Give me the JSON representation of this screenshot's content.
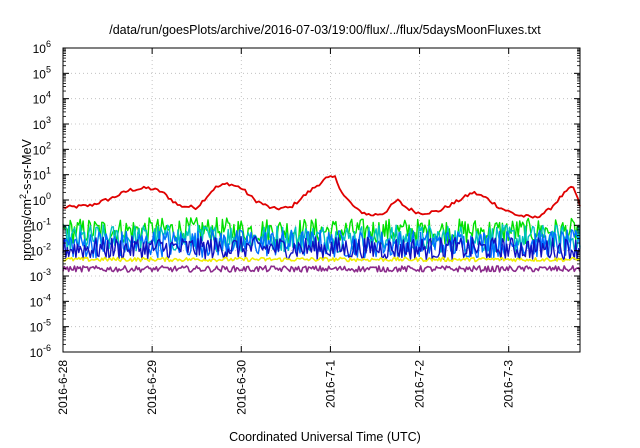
{
  "chart_data": {
    "type": "line",
    "title": "/data/run/goesPlots/archive/2016-07-03/19:00/flux/../flux/5daysMoonFluxes.txt",
    "xlabel": "Coordinated Universal Time (UTC)",
    "ylabel": "protons/cm²-s-sr-MeV",
    "ylabel_parts": {
      "prefix": "protons/cm",
      "superscript": "2",
      "suffix": "-s-sr-MeV"
    },
    "y_scale": "log",
    "ylim": [
      1e-06,
      1000000
    ],
    "y_ticks": [
      {
        "value": 1e-06,
        "base": "10",
        "exp": "-6"
      },
      {
        "value": 1e-05,
        "base": "10",
        "exp": "-5"
      },
      {
        "value": 0.0001,
        "base": "10",
        "exp": "-4"
      },
      {
        "value": 0.001,
        "base": "10",
        "exp": "-3"
      },
      {
        "value": 0.01,
        "base": "10",
        "exp": "-2"
      },
      {
        "value": 0.1,
        "base": "10",
        "exp": "-1"
      },
      {
        "value": 1,
        "base": "10",
        "exp": "0"
      },
      {
        "value": 10,
        "base": "10",
        "exp": "1"
      },
      {
        "value": 100,
        "base": "10",
        "exp": "2"
      },
      {
        "value": 1000,
        "base": "10",
        "exp": "3"
      },
      {
        "value": 10000,
        "base": "10",
        "exp": "4"
      },
      {
        "value": 100000,
        "base": "10",
        "exp": "5"
      },
      {
        "value": 1000000,
        "base": "10",
        "exp": "6"
      }
    ],
    "x_unit": "days",
    "xlim": [
      0,
      5.8
    ],
    "x_ticks": [
      {
        "value": 0,
        "label": "2016-6-28"
      },
      {
        "value": 1,
        "label": "2016-6-29"
      },
      {
        "value": 2,
        "label": "2016-6-30"
      },
      {
        "value": 3,
        "label": "2016-7-1"
      },
      {
        "value": 4,
        "label": "2016-7-2"
      },
      {
        "value": 5,
        "label": "2016-7-3"
      }
    ],
    "grid": true,
    "series": [
      {
        "color": "#e00000",
        "width": 1.8,
        "baseline": [
          [
            0.0,
            0.5
          ],
          [
            0.3,
            0.6
          ],
          [
            0.55,
            1.2
          ],
          [
            0.75,
            2.5
          ],
          [
            0.95,
            3.0
          ],
          [
            1.1,
            2.2
          ],
          [
            1.3,
            0.6
          ],
          [
            1.5,
            0.5
          ],
          [
            1.7,
            3.0
          ],
          [
            1.85,
            4.5
          ],
          [
            2.0,
            3.0
          ],
          [
            2.15,
            1.0
          ],
          [
            2.35,
            0.45
          ],
          [
            2.55,
            0.5
          ],
          [
            2.75,
            2.0
          ],
          [
            2.95,
            7.0
          ],
          [
            3.05,
            8.0
          ],
          [
            3.15,
            1.5
          ],
          [
            3.3,
            0.4
          ],
          [
            3.45,
            0.25
          ],
          [
            3.6,
            0.3
          ],
          [
            3.75,
            1.0
          ],
          [
            3.85,
            0.5
          ],
          [
            4.0,
            0.3
          ],
          [
            4.2,
            0.35
          ],
          [
            4.4,
            0.8
          ],
          [
            4.6,
            2.0
          ],
          [
            4.75,
            1.2
          ],
          [
            4.9,
            0.5
          ],
          [
            5.1,
            0.25
          ],
          [
            5.3,
            0.2
          ],
          [
            5.45,
            0.4
          ],
          [
            5.6,
            1.5
          ],
          [
            5.72,
            3.5
          ],
          [
            5.8,
            0.6
          ]
        ],
        "noise": 0.07
      },
      {
        "color": "#00e000",
        "width": 1.4,
        "baseline": [
          [
            0,
            0.06
          ],
          [
            1.5,
            0.065
          ],
          [
            3,
            0.06
          ],
          [
            4.5,
            0.058
          ],
          [
            5.8,
            0.06
          ]
        ],
        "noise": 0.5
      },
      {
        "color": "#00c0c0",
        "width": 1.4,
        "baseline": [
          [
            0,
            0.03
          ],
          [
            2,
            0.032
          ],
          [
            4,
            0.03
          ],
          [
            5.8,
            0.03
          ]
        ],
        "noise": 0.55
      },
      {
        "color": "#0070ff",
        "width": 1.4,
        "baseline": [
          [
            0,
            0.018
          ],
          [
            2,
            0.02
          ],
          [
            4,
            0.018
          ],
          [
            5.8,
            0.019
          ]
        ],
        "noise": 0.55
      },
      {
        "color": "#1010c0",
        "width": 1.4,
        "baseline": [
          [
            0,
            0.012
          ],
          [
            2,
            0.013
          ],
          [
            4,
            0.012
          ],
          [
            5.8,
            0.012
          ]
        ],
        "noise": 0.45
      },
      {
        "color": "#f0f000",
        "width": 1.6,
        "baseline": [
          [
            0,
            0.0045
          ],
          [
            5.8,
            0.0045
          ]
        ],
        "noise": 0.08
      },
      {
        "color": "#8b2a8b",
        "width": 1.6,
        "baseline": [
          [
            0,
            0.0019
          ],
          [
            5.8,
            0.0019
          ],
          [
            5.8,
            0.0009
          ]
        ],
        "noise": 0.12
      }
    ]
  }
}
